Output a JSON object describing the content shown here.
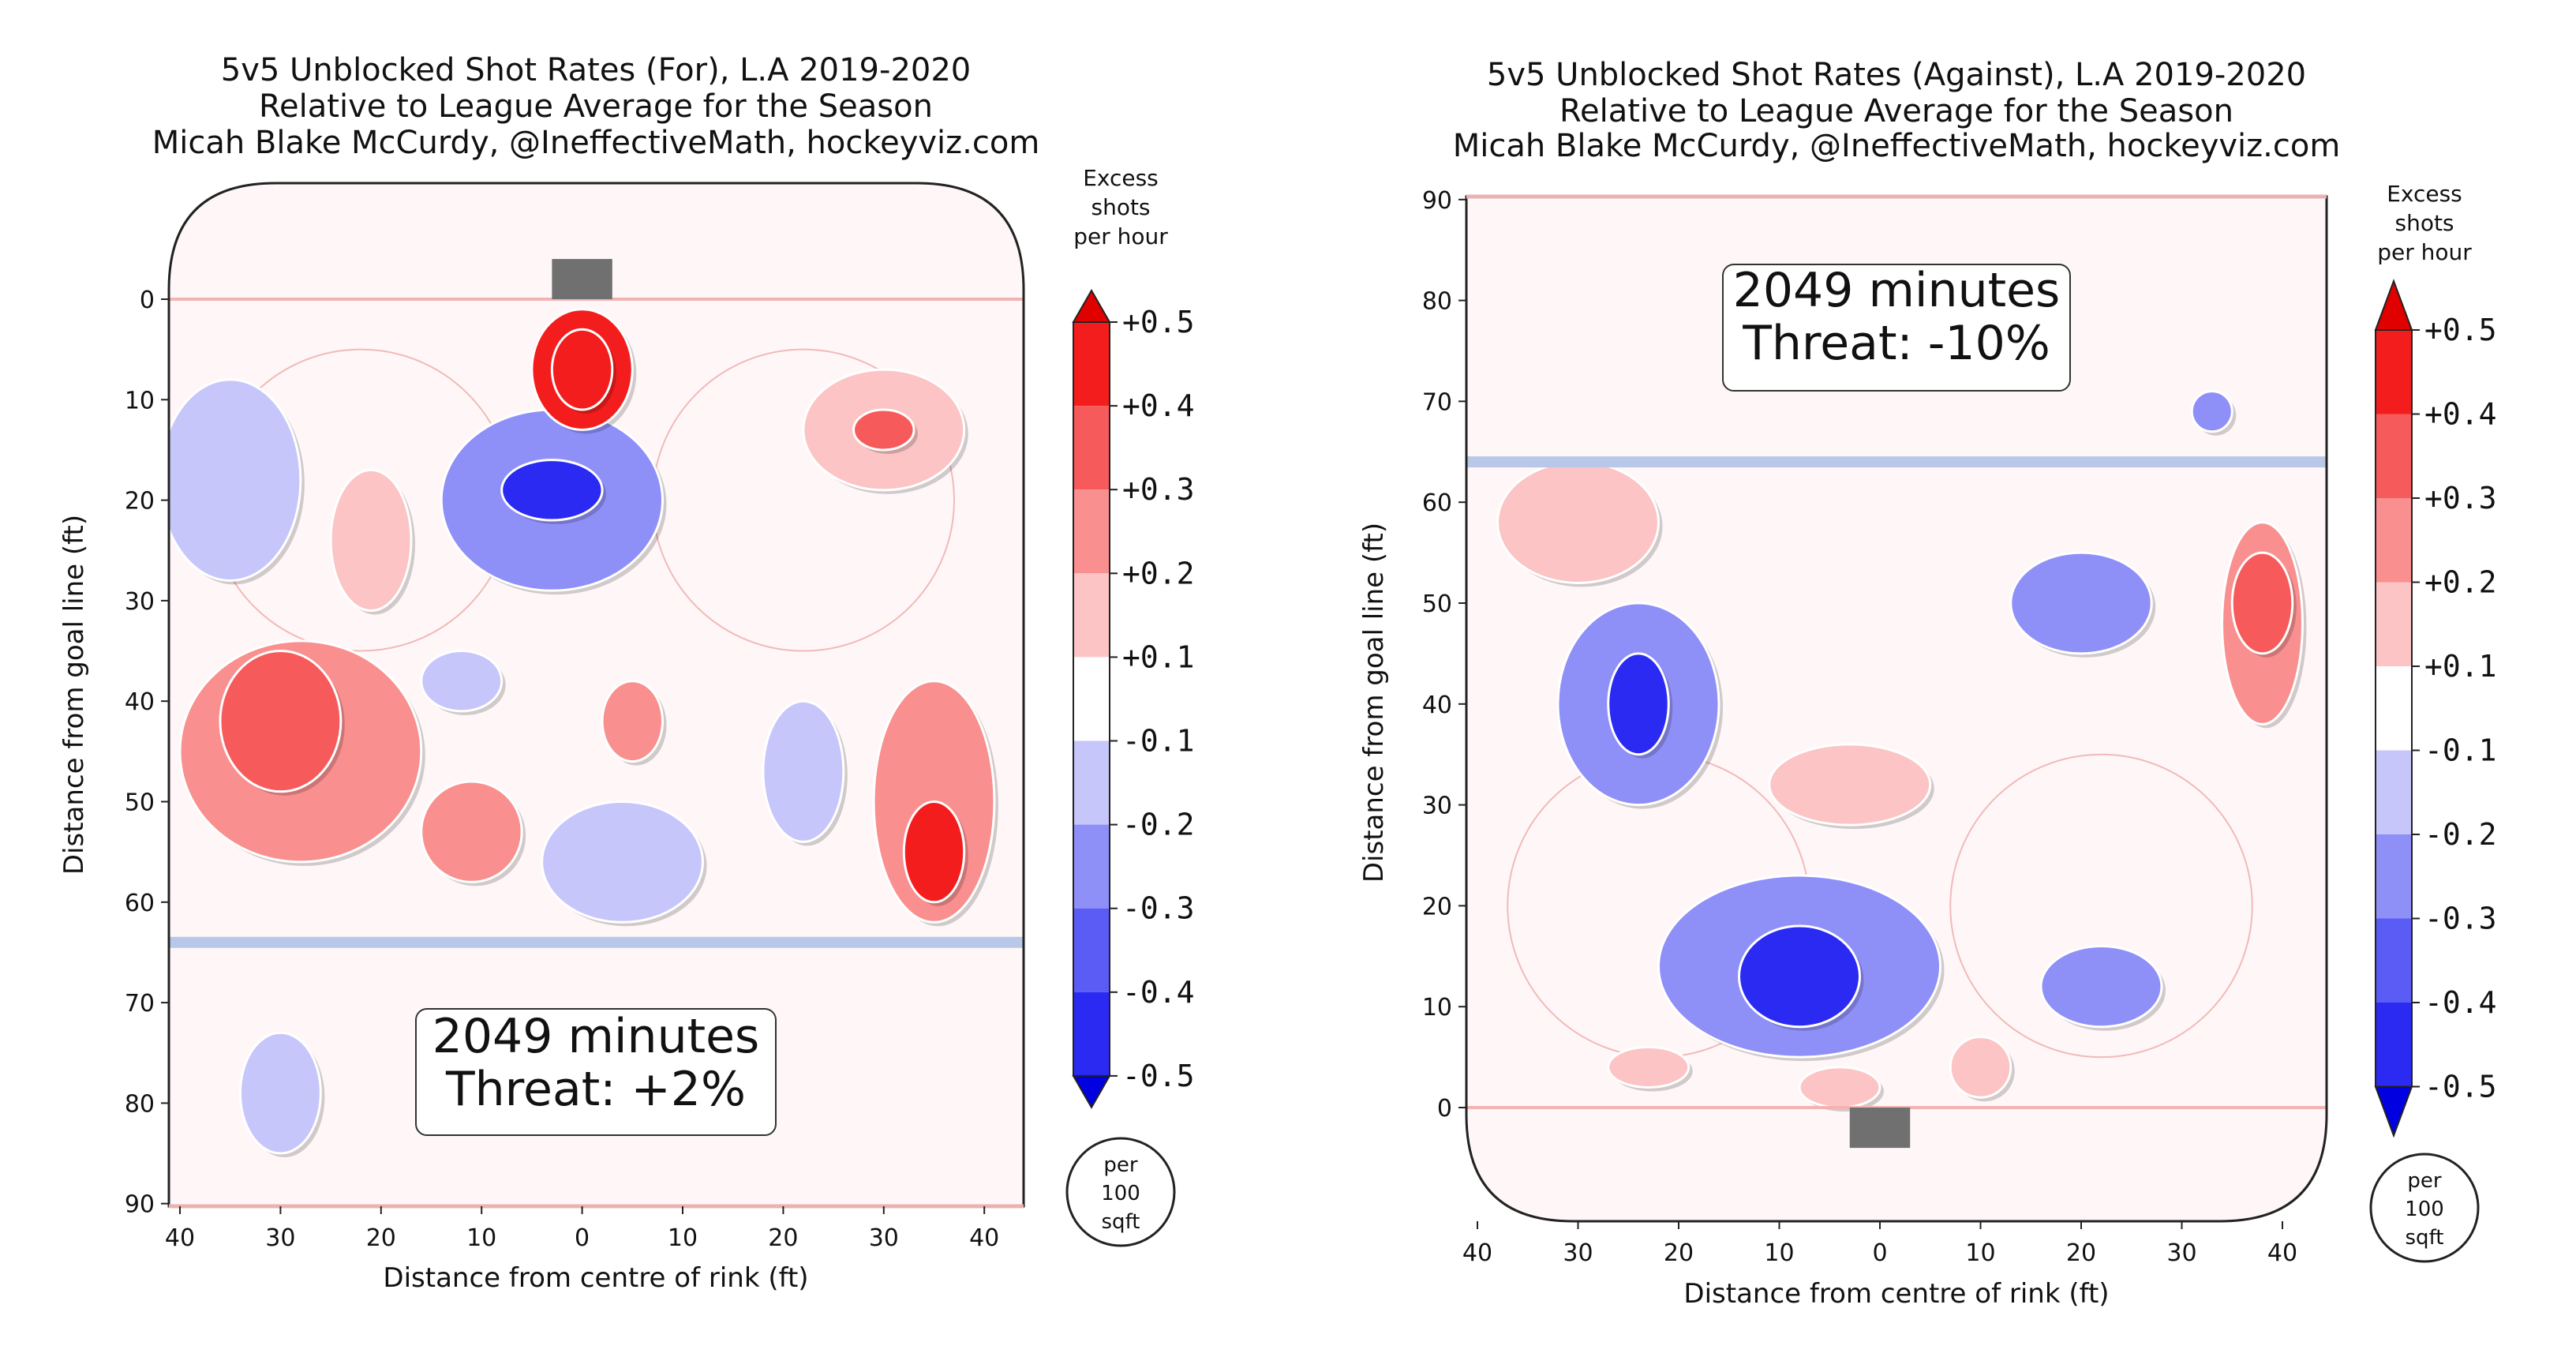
{
  "chart_data": [
    {
      "type": "heatmap",
      "title_lines": [
        "5v5 Unblocked Shot Rates (For), L.A 2019-2020",
        "Relative to League Average for the Season",
        "Micah Blake McCurdy, @IneffectiveMath, hockeyviz.com"
      ],
      "xlabel": "Distance from centre of rink (ft)",
      "ylabel": "Distance from goal line (ft)",
      "x_ticks": [
        "40",
        "30",
        "20",
        "10",
        "0",
        "10",
        "20",
        "30",
        "40"
      ],
      "y_ticks": [
        "0",
        "10",
        "20",
        "30",
        "40",
        "50",
        "60",
        "70",
        "80",
        "90"
      ],
      "xlim": [
        -42.5,
        42.5
      ],
      "ylim": [
        90,
        -11
      ],
      "minutes_label": "2049 minutes",
      "threat_label": "Threat: +2%",
      "goal_line_ft": 0,
      "blue_line_ft": 64,
      "goal_end": "top",
      "colorbar": {
        "header": [
          "Excess",
          "shots",
          "per hour"
        ],
        "ticks": [
          "+0.5",
          "+0.4",
          "+0.3",
          "+0.2",
          "+0.1",
          "-0.1",
          "-0.2",
          "-0.3",
          "-0.4",
          "-0.5"
        ],
        "units": [
          "per",
          "100",
          "sqft"
        ]
      },
      "blobs": [
        {
          "x": 0,
          "y": 7,
          "rx": 5,
          "ry": 6,
          "level": 0.45
        },
        {
          "x": 0,
          "y": 7,
          "rx": 3,
          "ry": 4,
          "level": 0.5
        },
        {
          "x": -28,
          "y": 45,
          "rx": 12,
          "ry": 11,
          "level": 0.3
        },
        {
          "x": -30,
          "y": 42,
          "rx": 6,
          "ry": 7,
          "level": 0.35
        },
        {
          "x": 35,
          "y": 50,
          "rx": 6,
          "ry": 12,
          "level": 0.3
        },
        {
          "x": 35,
          "y": 55,
          "rx": 3,
          "ry": 5,
          "level": 0.45
        },
        {
          "x": 30,
          "y": 13,
          "rx": 8,
          "ry": 6,
          "level": 0.2
        },
        {
          "x": 30,
          "y": 13,
          "rx": 3,
          "ry": 2,
          "level": 0.35
        },
        {
          "x": -21,
          "y": 24,
          "rx": 4,
          "ry": 7,
          "level": 0.2
        },
        {
          "x": 5,
          "y": 42,
          "rx": 3,
          "ry": 4,
          "level": 0.25
        },
        {
          "x": -11,
          "y": 53,
          "rx": 5,
          "ry": 5,
          "level": 0.25
        },
        {
          "x": -3,
          "y": 20,
          "rx": 11,
          "ry": 9,
          "level": -0.3
        },
        {
          "x": -3,
          "y": 19,
          "rx": 5,
          "ry": 3,
          "level": -0.45
        },
        {
          "x": -35,
          "y": 18,
          "rx": 7,
          "ry": 10,
          "level": -0.2
        },
        {
          "x": 4,
          "y": 56,
          "rx": 8,
          "ry": 6,
          "level": -0.2
        },
        {
          "x": 22,
          "y": 47,
          "rx": 4,
          "ry": 7,
          "level": -0.2
        },
        {
          "x": -12,
          "y": 38,
          "rx": 4,
          "ry": 3,
          "level": -0.2
        },
        {
          "x": -30,
          "y": 79,
          "rx": 4,
          "ry": 6,
          "level": -0.2
        }
      ]
    },
    {
      "type": "heatmap",
      "title_lines": [
        "5v5 Unblocked Shot Rates (Against), L.A 2019-2020",
        "Relative to League Average for the Season",
        "Micah Blake McCurdy, @IneffectiveMath, hockeyviz.com"
      ],
      "xlabel": "Distance from centre of rink (ft)",
      "ylabel": "Distance from goal line (ft)",
      "x_ticks": [
        "40",
        "30",
        "20",
        "10",
        "0",
        "10",
        "20",
        "30",
        "40"
      ],
      "y_ticks": [
        "90",
        "80",
        "70",
        "60",
        "50",
        "40",
        "30",
        "20",
        "10",
        "0"
      ],
      "xlim": [
        -42.5,
        42.5
      ],
      "ylim": [
        90,
        -11
      ],
      "minutes_label": "2049 minutes",
      "threat_label": "Threat: -10%",
      "goal_line_ft": 0,
      "blue_line_ft": 64,
      "goal_end": "bottom",
      "colorbar": {
        "header": [
          "Excess",
          "shots",
          "per hour"
        ],
        "ticks": [
          "+0.5",
          "+0.4",
          "+0.3",
          "+0.2",
          "+0.1",
          "-0.1",
          "-0.2",
          "-0.3",
          "-0.4",
          "-0.5"
        ],
        "units": [
          "per",
          "100",
          "sqft"
        ]
      },
      "blobs": [
        {
          "x": -8,
          "y": 14,
          "rx": 14,
          "ry": 9,
          "level": -0.3
        },
        {
          "x": -8,
          "y": 13,
          "rx": 6,
          "ry": 5,
          "level": -0.45
        },
        {
          "x": -24,
          "y": 40,
          "rx": 8,
          "ry": 10,
          "level": -0.3
        },
        {
          "x": -24,
          "y": 40,
          "rx": 3,
          "ry": 5,
          "level": -0.45
        },
        {
          "x": 20,
          "y": 50,
          "rx": 7,
          "ry": 5,
          "level": -0.3
        },
        {
          "x": 22,
          "y": 12,
          "rx": 6,
          "ry": 4,
          "level": -0.3
        },
        {
          "x": 33,
          "y": 69,
          "rx": 2,
          "ry": 2,
          "level": -0.3
        },
        {
          "x": 38,
          "y": 48,
          "rx": 4,
          "ry": 10,
          "level": 0.25
        },
        {
          "x": 38,
          "y": 50,
          "rx": 3,
          "ry": 5,
          "level": 0.35
        },
        {
          "x": -30,
          "y": 58,
          "rx": 8,
          "ry": 6,
          "level": 0.2
        },
        {
          "x": -3,
          "y": 32,
          "rx": 8,
          "ry": 4,
          "level": 0.2
        },
        {
          "x": -4,
          "y": 2,
          "rx": 4,
          "ry": 2,
          "level": 0.2
        },
        {
          "x": 10,
          "y": 4,
          "rx": 3,
          "ry": 3,
          "level": 0.2
        },
        {
          "x": -23,
          "y": 4,
          "rx": 4,
          "ry": 2,
          "level": 0.2
        }
      ]
    }
  ]
}
